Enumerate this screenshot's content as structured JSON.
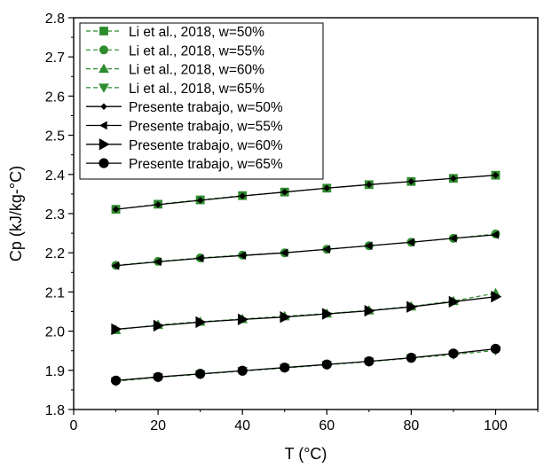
{
  "chart_data": {
    "type": "line",
    "title": "",
    "xlabel": "T (°C)",
    "ylabel": "Cp (kJ/kg-°C)",
    "xlim": [
      0,
      110
    ],
    "ylim": [
      1.8,
      2.8
    ],
    "x_ticks": [
      "0",
      "20",
      "40",
      "60",
      "80",
      "100"
    ],
    "y_ticks": [
      "1.8",
      "1.9",
      "2.0",
      "2.1",
      "2.2",
      "2.3",
      "2.4",
      "2.5",
      "2.6",
      "2.7",
      "2.8"
    ],
    "x_minor_ticks": [
      10,
      30,
      50,
      70,
      90,
      110
    ],
    "y_minor_ticks": [
      1.85,
      1.95,
      2.05,
      2.15,
      2.25,
      2.35,
      2.45,
      2.55,
      2.65,
      2.75
    ],
    "grid": false,
    "legend_position": "top-left",
    "x": [
      10,
      20,
      30,
      40,
      50,
      60,
      70,
      80,
      90,
      100
    ],
    "series": [
      {
        "name": "Li et al., 2018, w=50%",
        "marker": "square",
        "style": "dashed",
        "color": "#2e8b2e",
        "values": [
          2.311,
          2.324,
          2.335,
          2.346,
          2.355,
          2.365,
          2.374,
          2.382,
          2.39,
          2.398
        ]
      },
      {
        "name": "Li et al., 2018, w=55%",
        "marker": "circle",
        "style": "dashed",
        "color": "#2e8b2e",
        "values": [
          2.168,
          2.178,
          2.187,
          2.194,
          2.2,
          2.209,
          2.218,
          2.227,
          2.237,
          2.248
        ]
      },
      {
        "name": "Li et al., 2018, w=60%",
        "marker": "triangle-up",
        "style": "dashed",
        "color": "#2e8b2e",
        "values": [
          2.003,
          2.016,
          2.024,
          2.031,
          2.038,
          2.045,
          2.053,
          2.063,
          2.077,
          2.097
        ]
      },
      {
        "name": "Li et al., 2018, w=65%",
        "marker": "triangle-down",
        "style": "dashed",
        "color": "#2e8b2e",
        "values": [
          1.872,
          1.882,
          1.89,
          1.898,
          1.906,
          1.914,
          1.922,
          1.931,
          1.94,
          1.951
        ]
      },
      {
        "name": "Presente trabajo, w=50%",
        "marker": "diamond",
        "style": "solid",
        "color": "#000000",
        "values": [
          2.311,
          2.323,
          2.334,
          2.345,
          2.355,
          2.365,
          2.374,
          2.382,
          2.39,
          2.398
        ]
      },
      {
        "name": "Presente trabajo, w=55%",
        "marker": "triangle-left",
        "style": "solid",
        "color": "#000000",
        "values": [
          2.167,
          2.177,
          2.186,
          2.193,
          2.2,
          2.209,
          2.218,
          2.227,
          2.237,
          2.246
        ]
      },
      {
        "name": "Presente trabajo, w=60%",
        "marker": "triangle-right",
        "style": "solid",
        "color": "#000000",
        "values": [
          2.005,
          2.014,
          2.023,
          2.03,
          2.036,
          2.044,
          2.052,
          2.062,
          2.075,
          2.088
        ]
      },
      {
        "name": "Presente trabajo, w=65%",
        "marker": "circle",
        "style": "solid",
        "color": "#000000",
        "values": [
          1.874,
          1.883,
          1.891,
          1.899,
          1.907,
          1.915,
          1.923,
          1.932,
          1.943,
          1.955
        ]
      }
    ]
  }
}
